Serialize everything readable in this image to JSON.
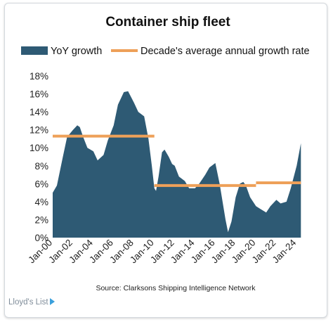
{
  "chart_data": {
    "type": "area",
    "title": "Container ship fleet",
    "legend": {
      "position": "top",
      "entries": [
        "YoY growth",
        "Decade's average annual growth rate"
      ]
    },
    "colors": {
      "area": "#2e5a74",
      "average": "#eea059"
    },
    "xlabel": "",
    "ylabel": "",
    "x_ticks": [
      "Jan-00",
      "Jan-02",
      "Jan-04",
      "Jan-06",
      "Jan-08",
      "Jan-10",
      "Jan-12",
      "Jan-14",
      "Jan-16",
      "Jan-18",
      "Jan-20",
      "Jan-22",
      "Jan-24"
    ],
    "ylim": [
      0,
      0.18
    ],
    "y_ticks": [
      "0%",
      "2%",
      "4%",
      "6%",
      "8%",
      "10%",
      "12%",
      "14%",
      "16%",
      "18%"
    ],
    "grid": false,
    "series": [
      {
        "name": "YoY growth",
        "type": "area",
        "points": [
          [
            "2000-01",
            0.05
          ],
          [
            "2000-06",
            0.058
          ],
          [
            "2001-01",
            0.09
          ],
          [
            "2001-06",
            0.112
          ],
          [
            "2002-01",
            0.12
          ],
          [
            "2002-06",
            0.125
          ],
          [
            "2002-09",
            0.123
          ],
          [
            "2003-01",
            0.112
          ],
          [
            "2003-06",
            0.1
          ],
          [
            "2004-01",
            0.096
          ],
          [
            "2004-06",
            0.086
          ],
          [
            "2005-01",
            0.092
          ],
          [
            "2005-06",
            0.108
          ],
          [
            "2006-01",
            0.125
          ],
          [
            "2006-06",
            0.148
          ],
          [
            "2007-01",
            0.162
          ],
          [
            "2007-06",
            0.163
          ],
          [
            "2008-01",
            0.15
          ],
          [
            "2008-06",
            0.14
          ],
          [
            "2009-01",
            0.135
          ],
          [
            "2009-06",
            0.11
          ],
          [
            "2009-10",
            0.08
          ],
          [
            "2010-01",
            0.055
          ],
          [
            "2010-03",
            0.052
          ],
          [
            "2010-06",
            0.068
          ],
          [
            "2010-10",
            0.095
          ],
          [
            "2011-01",
            0.098
          ],
          [
            "2011-06",
            0.09
          ],
          [
            "2011-10",
            0.082
          ],
          [
            "2012-01",
            0.08
          ],
          [
            "2012-06",
            0.068
          ],
          [
            "2013-01",
            0.063
          ],
          [
            "2013-06",
            0.055
          ],
          [
            "2014-01",
            0.055
          ],
          [
            "2014-06",
            0.06
          ],
          [
            "2015-01",
            0.07
          ],
          [
            "2015-06",
            0.078
          ],
          [
            "2016-01",
            0.083
          ],
          [
            "2016-06",
            0.06
          ],
          [
            "2017-01",
            0.02
          ],
          [
            "2017-04",
            0.006
          ],
          [
            "2017-08",
            0.018
          ],
          [
            "2018-01",
            0.045
          ],
          [
            "2018-06",
            0.06
          ],
          [
            "2018-10",
            0.062
          ],
          [
            "2019-01",
            0.058
          ],
          [
            "2019-06",
            0.045
          ],
          [
            "2020-01",
            0.035
          ],
          [
            "2020-06",
            0.032
          ],
          [
            "2021-01",
            0.028
          ],
          [
            "2021-06",
            0.035
          ],
          [
            "2022-01",
            0.042
          ],
          [
            "2022-06",
            0.038
          ],
          [
            "2023-01",
            0.04
          ],
          [
            "2023-06",
            0.055
          ],
          [
            "2024-01",
            0.08
          ],
          [
            "2024-06",
            0.105
          ]
        ]
      },
      {
        "name": "Decade's average annual growth rate",
        "type": "step-line",
        "segments": [
          {
            "from": "2000-01",
            "to": "2010-01",
            "value": 0.113
          },
          {
            "from": "2010-01",
            "to": "2020-01",
            "value": 0.058
          },
          {
            "from": "2020-01",
            "to": "2024-06",
            "value": 0.061
          }
        ]
      }
    ],
    "source": "Source: Clarksons Shipping Intelligence Network"
  },
  "footer": {
    "brand": "Lloyd's List"
  }
}
